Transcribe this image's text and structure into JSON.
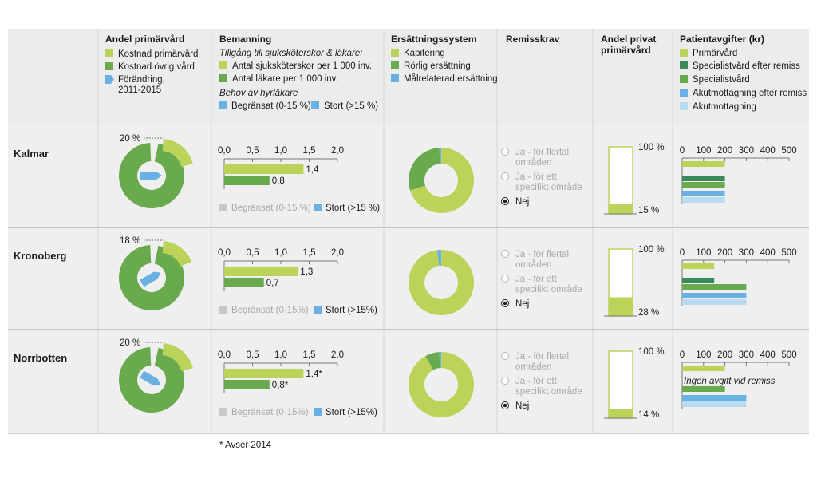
{
  "colors": {
    "light_green": "#bcd35a",
    "green": "#6aaa4f",
    "dark_green": "#3b8a5a",
    "blue": "#6ab1e3",
    "light_blue": "#b9dbf2",
    "header_bg": "#ececec",
    "row_bg": "#efefef",
    "grid": "#c8c8c8"
  },
  "headers": {
    "andel_primarvard": "Andel primärvård",
    "bemanning": "Bemanning",
    "ersattningssystem": "Ersättningssystem",
    "remisskrav": "Remisskrav",
    "andel_privat": [
      "Andel privat",
      "primärvård"
    ],
    "patientavgifter": "Patientavgifter (kr)"
  },
  "legends": {
    "andel_primarvard": {
      "kostnad_primarvard": "Kostnad primärvård",
      "kostnad_ovrig": "Kostnad övrig vård",
      "forandring": [
        "Förändring,",
        "2011-2015"
      ]
    },
    "bemanning": {
      "subtitle": "Tillgång till sjuksköterskor & läkare:",
      "nurses": "Antal sjuksköterskor per 1 000 inv.",
      "doctors": "Antal läkare per 1 000 inv.",
      "hire_title": "Behov av hyrläkare",
      "hire_limited": "Begränsat (0-15 %)",
      "hire_large": "Stort (>15 %)"
    },
    "ersattningssystem": {
      "kapitering": "Kapitering",
      "rorlig": "Rörlig ersättning",
      "malrelaterad": "Målrelaterad ersättning"
    },
    "patientavgifter": {
      "primarvard": "Primärvård",
      "specialist_remiss": "Specialistvård efter remiss",
      "specialist": "Specialistvård",
      "akut_remiss": "Akutmottagning efter remiss",
      "akut": "Akutmottagning"
    }
  },
  "options": {
    "ja_flertal": [
      "Ja - för flertal",
      "områden"
    ],
    "ja_specifikt": [
      "Ja - för ett",
      "specifikt område"
    ],
    "nej": "Nej"
  },
  "footnote": "* Avser 2014",
  "chart_data": {
    "type": "table",
    "rows": [
      {
        "region": "Kalmar",
        "primary_care_share": {
          "label": "20 %",
          "value": 20,
          "change_direction": "east"
        },
        "staffing": {
          "axis_ticks": [
            "0,0",
            "0,5",
            "1,0",
            "1,5",
            "2,0"
          ],
          "axis_range": [
            0,
            2.0
          ],
          "nurses": 1.4,
          "nurses_label": "1,4",
          "doctors": 0.8,
          "doctors_label": "0,8",
          "hire_need_limited": "Begränsat (0-15 %)",
          "hire_need_large": "Stort (>15 %)",
          "hire_need": "large"
        },
        "reimbursement": {
          "kapitering": 70,
          "rorlig": 29,
          "malrelaterad": 1
        },
        "referral_requirement": "nej",
        "private_share": {
          "top_label": "100 %",
          "label": "15 %",
          "value": 15
        },
        "patient_fees": {
          "axis_ticks": [
            "0",
            "100",
            "200",
            "300",
            "400",
            "500"
          ],
          "axis_range": [
            0,
            500
          ],
          "primarvard": 200,
          "specialist_remiss": 200,
          "specialist": 200,
          "akut_remiss": 200,
          "akut": 200,
          "note": ""
        }
      },
      {
        "region": "Kronoberg",
        "primary_care_share": {
          "label": "18 %",
          "value": 18,
          "change_direction": "north-east"
        },
        "staffing": {
          "axis_ticks": [
            "0,0",
            "0,5",
            "1,0",
            "1,5",
            "2,0"
          ],
          "axis_range": [
            0,
            2.0
          ],
          "nurses": 1.3,
          "nurses_label": "1,3",
          "doctors": 0.7,
          "doctors_label": "0,7",
          "hire_need_limited": "Begränsat (0-15%)",
          "hire_need_large": "Stort (>15%)",
          "hire_need": "large"
        },
        "reimbursement": {
          "kapitering": 98,
          "rorlig": 0,
          "malrelaterad": 2
        },
        "referral_requirement": "nej",
        "private_share": {
          "top_label": "100 %",
          "label": "28 %",
          "value": 28
        },
        "patient_fees": {
          "axis_ticks": [
            "0",
            "100",
            "200",
            "300",
            "400",
            "500"
          ],
          "axis_range": [
            0,
            500
          ],
          "primarvard": 150,
          "specialist_remiss": 150,
          "specialist": 300,
          "akut_remiss": 300,
          "akut": 300,
          "note": ""
        }
      },
      {
        "region": "Norrbotten",
        "primary_care_share": {
          "label": "20 %",
          "value": 20,
          "change_direction": "south-east"
        },
        "staffing": {
          "axis_ticks": [
            "0,0",
            "0,5",
            "1,0",
            "1,5",
            "2,0"
          ],
          "axis_range": [
            0,
            2.0
          ],
          "nurses": 1.4,
          "nurses_label": "1,4*",
          "doctors": 0.8,
          "doctors_label": "0,8*",
          "hire_need_limited": "Begränsat (0-15%)",
          "hire_need_large": "Stort (>15%)",
          "hire_need": "large"
        },
        "reimbursement": {
          "kapitering": 92,
          "rorlig": 7,
          "malrelaterad": 1
        },
        "referral_requirement": "nej",
        "private_share": {
          "top_label": "100 %",
          "label": "14 %",
          "value": 14
        },
        "patient_fees": {
          "axis_ticks": [
            "0",
            "100",
            "200",
            "300",
            "400",
            "500"
          ],
          "axis_range": [
            0,
            500
          ],
          "primarvard": 200,
          "specialist_remiss": null,
          "specialist": 200,
          "akut_remiss": 300,
          "akut": 300,
          "note": "Ingen avgift vid remiss"
        }
      }
    ]
  }
}
